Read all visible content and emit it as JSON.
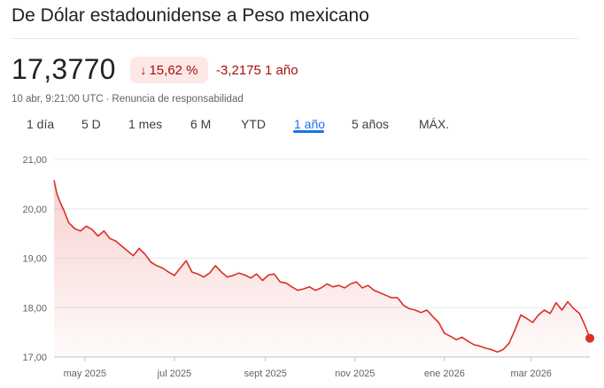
{
  "header": {
    "title": "De Dólar estadounidense a Peso mexicano",
    "price": "17,3770",
    "change_percent": "15,62 %",
    "change_abs": "-3,2175 1 año",
    "timestamp": "10 abr, 9:21:00 UTC",
    "separator": "·",
    "disclaimer": "Renuncia de responsabilidad",
    "change_color": "#a50e0e",
    "badge_bg": "#fce8e6"
  },
  "tabs": [
    {
      "label": "1 día"
    },
    {
      "label": "5 D"
    },
    {
      "label": "1 mes"
    },
    {
      "label": "6 M"
    },
    {
      "label": "YTD"
    },
    {
      "label": "1 año",
      "active": true
    },
    {
      "label": "5 años"
    },
    {
      "label": "MÁX."
    }
  ],
  "chart_data": {
    "type": "area",
    "ylim": [
      17.0,
      21.0
    ],
    "yticks": [
      {
        "value": 21.0,
        "label": "21,00"
      },
      {
        "value": 20.0,
        "label": "20,00"
      },
      {
        "value": 19.0,
        "label": "19,00"
      },
      {
        "value": 18.0,
        "label": "18,00"
      },
      {
        "value": 17.0,
        "label": "17,00"
      }
    ],
    "xlim": [
      "2025-04-10",
      "2026-04-10"
    ],
    "xticks": [
      {
        "date": "2025-05-01",
        "label": "may 2025"
      },
      {
        "date": "2025-07-01",
        "label": "jul 2025"
      },
      {
        "date": "2025-09-01",
        "label": "sept 2025"
      },
      {
        "date": "2025-11-01",
        "label": "nov 2025"
      },
      {
        "date": "2026-01-01",
        "label": "ene 2026"
      },
      {
        "date": "2026-03-01",
        "label": "mar 2026"
      }
    ],
    "line_color": "#d93025",
    "grid": true,
    "series": [
      {
        "x": [
          "2025-04-10",
          "2025-04-12",
          "2025-04-14",
          "2025-04-17",
          "2025-04-20",
          "2025-04-24",
          "2025-04-28",
          "2025-05-02",
          "2025-05-06",
          "2025-05-10",
          "2025-05-14",
          "2025-05-18",
          "2025-05-22",
          "2025-05-26",
          "2025-05-30",
          "2025-06-03",
          "2025-06-07",
          "2025-06-11",
          "2025-06-15",
          "2025-06-19",
          "2025-06-23",
          "2025-06-27",
          "2025-07-01",
          "2025-07-05",
          "2025-07-09",
          "2025-07-13",
          "2025-07-17",
          "2025-07-21",
          "2025-07-25",
          "2025-07-29",
          "2025-08-02",
          "2025-08-06",
          "2025-08-10",
          "2025-08-14",
          "2025-08-18",
          "2025-08-22",
          "2025-08-26",
          "2025-08-30",
          "2025-09-03",
          "2025-09-07",
          "2025-09-11",
          "2025-09-15",
          "2025-09-19",
          "2025-09-23",
          "2025-09-27",
          "2025-10-01",
          "2025-10-05",
          "2025-10-09",
          "2025-10-13",
          "2025-10-17",
          "2025-10-21",
          "2025-10-25",
          "2025-10-29",
          "2025-11-02",
          "2025-11-06",
          "2025-11-10",
          "2025-11-14",
          "2025-11-18",
          "2025-11-22",
          "2025-11-26",
          "2025-11-30",
          "2025-12-04",
          "2025-12-08",
          "2025-12-12",
          "2025-12-16",
          "2025-12-20",
          "2025-12-24",
          "2025-12-28",
          "2026-01-01",
          "2026-01-05",
          "2026-01-09",
          "2026-01-13",
          "2026-01-17",
          "2026-01-21",
          "2026-01-25",
          "2026-01-29",
          "2026-02-02",
          "2026-02-06",
          "2026-02-10",
          "2026-02-14",
          "2026-02-18",
          "2026-02-22",
          "2026-02-26",
          "2026-03-02",
          "2026-03-06",
          "2026-03-10",
          "2026-03-14",
          "2026-03-18",
          "2026-03-22",
          "2026-03-26",
          "2026-03-30",
          "2026-04-03",
          "2026-04-07",
          "2026-04-10"
        ],
        "y": [
          20.58,
          20.3,
          20.15,
          19.95,
          19.72,
          19.6,
          19.55,
          19.65,
          19.58,
          19.45,
          19.55,
          19.4,
          19.35,
          19.25,
          19.15,
          19.05,
          19.2,
          19.08,
          18.92,
          18.85,
          18.8,
          18.72,
          18.65,
          18.8,
          18.95,
          18.72,
          18.68,
          18.62,
          18.7,
          18.85,
          18.72,
          18.62,
          18.65,
          18.7,
          18.66,
          18.6,
          18.68,
          18.55,
          18.66,
          18.68,
          18.52,
          18.5,
          18.42,
          18.35,
          18.38,
          18.42,
          18.35,
          18.4,
          18.48,
          18.42,
          18.45,
          18.4,
          18.48,
          18.52,
          18.4,
          18.45,
          18.35,
          18.3,
          18.25,
          18.2,
          18.2,
          18.05,
          17.98,
          17.95,
          17.9,
          17.95,
          17.82,
          17.7,
          17.48,
          17.42,
          17.35,
          17.4,
          17.32,
          17.25,
          17.22,
          17.18,
          17.15,
          17.1,
          17.15,
          17.28,
          17.55,
          17.85,
          17.78,
          17.7,
          17.85,
          17.95,
          17.88,
          18.1,
          17.95,
          18.12,
          17.98,
          17.88,
          17.62,
          17.38
        ]
      }
    ]
  }
}
